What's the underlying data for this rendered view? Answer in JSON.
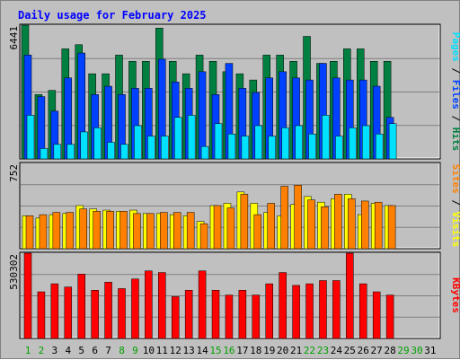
{
  "chart_data": [
    {
      "type": "bar",
      "title": "Daily usage for February 2025",
      "x": [
        "1",
        "2",
        "3",
        "4",
        "5",
        "6",
        "7",
        "8",
        "9",
        "10",
        "11",
        "12",
        "13",
        "14",
        "15",
        "16",
        "17",
        "18",
        "19",
        "20",
        "21",
        "22",
        "23",
        "24",
        "25",
        "26",
        "27",
        "28",
        "29",
        "30",
        "31"
      ],
      "weekend_days": [
        "1",
        "2",
        "8",
        "9",
        "15",
        "16",
        "22",
        "23",
        "29",
        "30"
      ],
      "y_max_label": "6441",
      "ylim": [
        0,
        6441
      ],
      "legend": [
        "Pages",
        "Files",
        "Hits"
      ],
      "series": [
        {
          "name": "Hits",
          "color": "#008040",
          "values": [
            6441,
            3100,
            3300,
            5300,
            5500,
            4100,
            4100,
            5000,
            4700,
            4700,
            6300,
            4700,
            4100,
            5000,
            4700,
            4200,
            4100,
            3800,
            5000,
            5000,
            4700,
            5900,
            4600,
            4700,
            5300,
            5300,
            4700,
            4700,
            null,
            null,
            null
          ]
        },
        {
          "name": "Files",
          "color": "#0040ff",
          "values": [
            5000,
            3000,
            2300,
            3900,
            5100,
            3100,
            3500,
            3100,
            3400,
            3400,
            4800,
            3700,
            3400,
            4200,
            3100,
            4600,
            3400,
            3200,
            3900,
            4200,
            3900,
            3800,
            4600,
            3900,
            3800,
            3800,
            3500,
            2000,
            null,
            null,
            null
          ]
        },
        {
          "name": "Pages",
          "color": "#00e0ff",
          "values": [
            2100,
            500,
            700,
            700,
            1300,
            1500,
            800,
            700,
            1600,
            1100,
            1100,
            2000,
            2100,
            600,
            1700,
            1200,
            1100,
            1600,
            1100,
            1500,
            1600,
            1200,
            2100,
            1100,
            1500,
            1600,
            1200,
            1700,
            null,
            null,
            null
          ]
        }
      ]
    },
    {
      "type": "bar",
      "y_max_label": "752",
      "ylim": [
        0,
        752
      ],
      "legend": [
        "Sites",
        "Visits"
      ],
      "series": [
        {
          "name": "Visits",
          "color": "#ffff00",
          "values": [
            290,
            270,
            300,
            310,
            380,
            350,
            340,
            330,
            340,
            310,
            310,
            300,
            290,
            240,
            380,
            400,
            500,
            400,
            320,
            290,
            390,
            460,
            410,
            440,
            480,
            300,
            400,
            380,
            null,
            null,
            null
          ]
        },
        {
          "name": "Sites",
          "color": "#ff8000",
          "values": [
            290,
            300,
            320,
            320,
            350,
            330,
            330,
            330,
            310,
            310,
            320,
            320,
            320,
            220,
            380,
            360,
            480,
            300,
            400,
            550,
            560,
            430,
            370,
            480,
            440,
            420,
            410,
            380,
            null,
            null,
            null
          ]
        }
      ]
    },
    {
      "type": "bar",
      "y_max_label": "530302",
      "ylim": [
        0,
        530302
      ],
      "legend": [
        "KBytes"
      ],
      "series": [
        {
          "name": "KBytes",
          "color": "#ff0000",
          "values": [
            530302,
            290000,
            340000,
            320000,
            400000,
            300000,
            350000,
            310000,
            370000,
            420000,
            410000,
            260000,
            300000,
            420000,
            300000,
            270000,
            300000,
            270000,
            340000,
            410000,
            330000,
            340000,
            360000,
            360000,
            530302,
            340000,
            290000,
            270000,
            null,
            null,
            null
          ]
        }
      ]
    }
  ]
}
